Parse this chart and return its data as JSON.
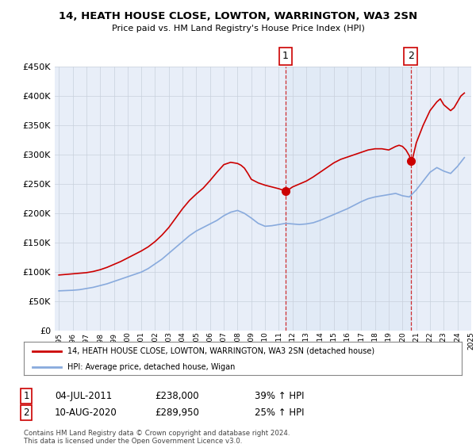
{
  "title": "14, HEATH HOUSE CLOSE, LOWTON, WARRINGTON, WA3 2SN",
  "subtitle": "Price paid vs. HM Land Registry's House Price Index (HPI)",
  "legend_line1": "14, HEATH HOUSE CLOSE, LOWTON, WARRINGTON, WA3 2SN (detached house)",
  "legend_line2": "HPI: Average price, detached house, Wigan",
  "annotation1_date": "04-JUL-2011",
  "annotation1_price": "£238,000",
  "annotation1_hpi": "39% ↑ HPI",
  "annotation2_date": "10-AUG-2020",
  "annotation2_price": "£289,950",
  "annotation2_hpi": "25% ↑ HPI",
  "sale1_year": 2011.5,
  "sale1_value": 238000,
  "sale2_year": 2020.6,
  "sale2_value": 289950,
  "footer": "Contains HM Land Registry data © Crown copyright and database right 2024.\nThis data is licensed under the Open Government Licence v3.0.",
  "line_color_property": "#cc0000",
  "line_color_hpi": "#88aadd",
  "shade_color": "#dde8f5",
  "plot_bg": "#e8eef8",
  "ylim": [
    0,
    450000
  ],
  "xlim_start": 1995,
  "xlim_end": 2025,
  "hpi_years": [
    1995,
    1995.5,
    1996,
    1996.5,
    1997,
    1997.5,
    1998,
    1998.5,
    1999,
    1999.5,
    2000,
    2000.5,
    2001,
    2001.5,
    2002,
    2002.5,
    2003,
    2003.5,
    2004,
    2004.5,
    2005,
    2005.5,
    2006,
    2006.5,
    2007,
    2007.5,
    2008,
    2008.5,
    2009,
    2009.5,
    2010,
    2010.5,
    2011,
    2011.5,
    2012,
    2012.5,
    2013,
    2013.5,
    2014,
    2014.5,
    2015,
    2015.5,
    2016,
    2016.5,
    2017,
    2017.5,
    2018,
    2018.5,
    2019,
    2019.5,
    2020,
    2020.5,
    2021,
    2021.5,
    2022,
    2022.5,
    2023,
    2023.5,
    2024,
    2024.5
  ],
  "hpi_values": [
    68000,
    68500,
    69000,
    70000,
    72000,
    74000,
    77000,
    80000,
    84000,
    88000,
    92000,
    96000,
    100000,
    106000,
    114000,
    122000,
    132000,
    142000,
    152000,
    162000,
    170000,
    176000,
    182000,
    188000,
    196000,
    202000,
    205000,
    200000,
    192000,
    183000,
    178000,
    179000,
    181000,
    183000,
    182000,
    181000,
    182000,
    184000,
    188000,
    193000,
    198000,
    203000,
    208000,
    214000,
    220000,
    225000,
    228000,
    230000,
    232000,
    234000,
    230000,
    228000,
    240000,
    255000,
    270000,
    278000,
    272000,
    268000,
    280000,
    295000
  ],
  "prop_years": [
    1995,
    1995.5,
    1996,
    1996.5,
    1997,
    1997.5,
    1998,
    1998.5,
    1999,
    1999.5,
    2000,
    2000.5,
    2001,
    2001.5,
    2002,
    2002.5,
    2003,
    2003.5,
    2004,
    2004.5,
    2005,
    2005.5,
    2006,
    2006.5,
    2007,
    2007.5,
    2008,
    2008.25,
    2008.5,
    2008.75,
    2009,
    2009.5,
    2010,
    2010.5,
    2011,
    2011.25,
    2011.5,
    2011.75,
    2012,
    2012.5,
    2013,
    2013.5,
    2014,
    2014.5,
    2015,
    2015.5,
    2016,
    2016.5,
    2017,
    2017.5,
    2018,
    2018.5,
    2019,
    2019.25,
    2019.5,
    2019.75,
    2020,
    2020.25,
    2020.5,
    2020.6,
    2020.75,
    2021,
    2021.5,
    2022,
    2022.5,
    2022.75,
    2023,
    2023.25,
    2023.5,
    2023.75,
    2024,
    2024.25,
    2024.5
  ],
  "prop_values": [
    95000,
    96000,
    97000,
    98000,
    99000,
    101000,
    104000,
    108000,
    113000,
    118000,
    124000,
    130000,
    136000,
    143000,
    152000,
    163000,
    176000,
    192000,
    208000,
    222000,
    233000,
    243000,
    256000,
    270000,
    283000,
    287000,
    285000,
    282000,
    277000,
    268000,
    258000,
    252000,
    248000,
    245000,
    242000,
    240000,
    238000,
    241000,
    245000,
    250000,
    255000,
    262000,
    270000,
    278000,
    286000,
    292000,
    296000,
    300000,
    304000,
    308000,
    310000,
    310000,
    308000,
    311000,
    314000,
    316000,
    314000,
    308000,
    298000,
    289950,
    295000,
    320000,
    350000,
    375000,
    390000,
    395000,
    385000,
    380000,
    375000,
    380000,
    390000,
    400000,
    405000
  ]
}
